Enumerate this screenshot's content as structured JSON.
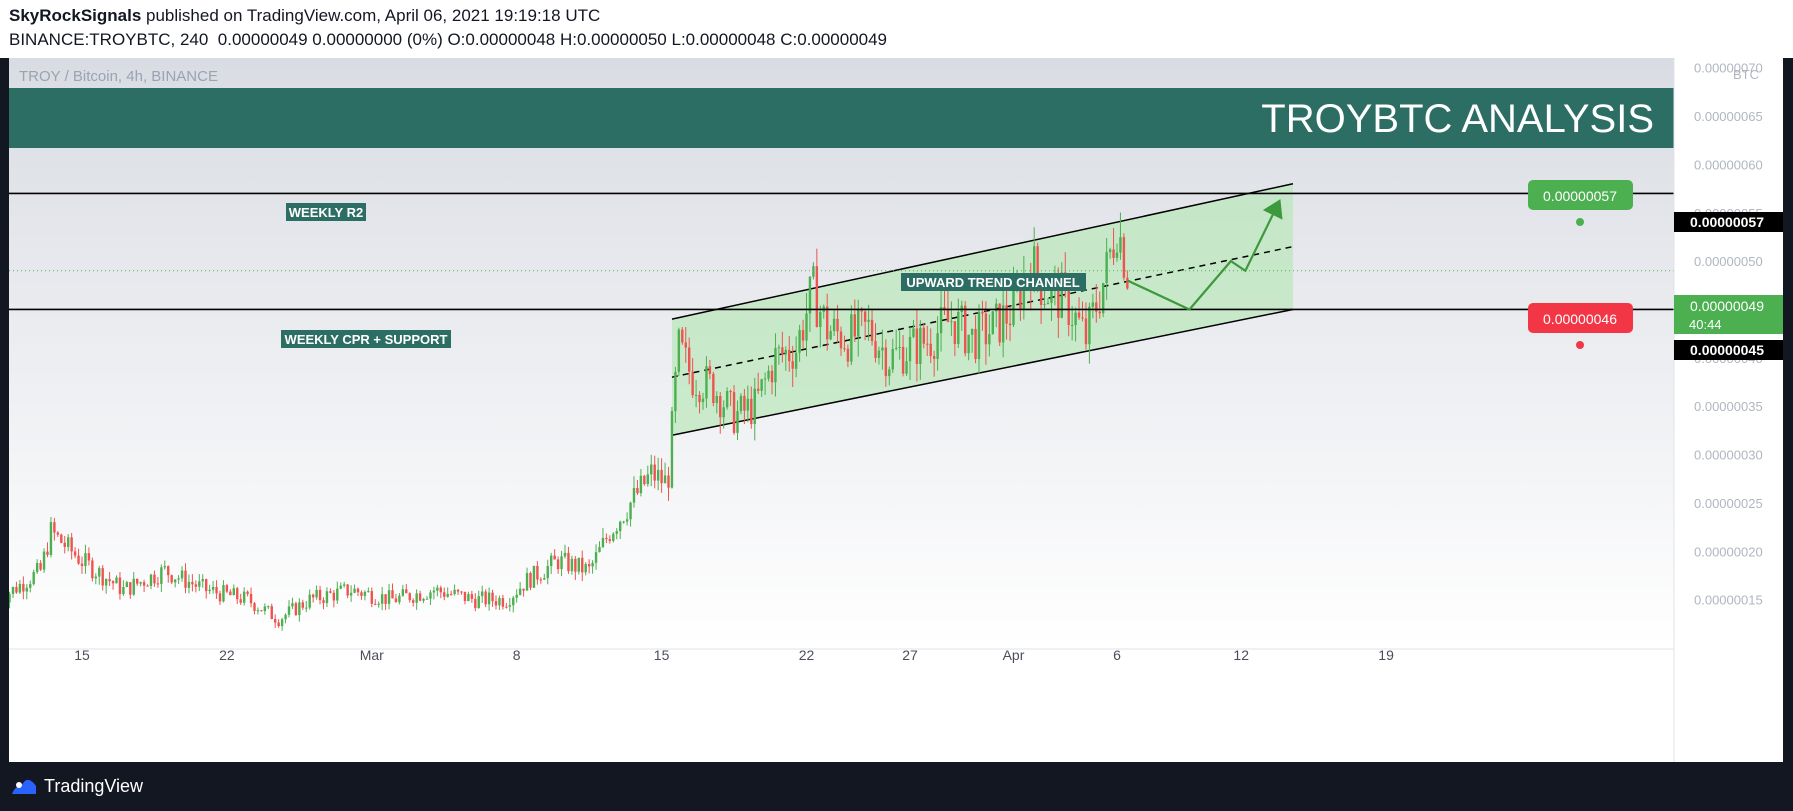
{
  "header": {
    "publisher": "SkyRockSignals",
    "published_text": " published on TradingView.com, April 06, 2021 19:19:18 UTC",
    "ohlc_line": "BINANCE:TROYBTC, 240  0.00000049 0.00000000 (0%) O:0.00000048 H:0.00000050 L:0.00000048 C:0.00000049"
  },
  "symbol_label": "TROY / Bitcoin, 4h, BINANCE",
  "banner_title": "TROYBTC ANALYSIS",
  "currency_label": "BTC",
  "annotations": {
    "weekly_r2": "WEEKLY R2",
    "weekly_cpr": "WEEKLY CPR + SUPPORT",
    "channel": "UPWARD TREND CHANNEL"
  },
  "price_tags": {
    "r2_line": "0.00000057",
    "support_line": "0.00000045",
    "current": "0.00000049",
    "countdown": "40:44",
    "target_green": "0.00000057",
    "target_red": "0.00000046"
  },
  "footer": {
    "brand": "TradingView"
  },
  "colors": {
    "up": "#26a69a",
    "up_candle": "#4caf50",
    "down": "#ef5350",
    "banner": "#2d6e64",
    "channel_fill": "#b9e7b9",
    "channel_line": "#000000",
    "arrow": "#3c9a3c",
    "tag_green": "#4caf50",
    "tag_red": "#f23645"
  },
  "chart_data": {
    "type": "candlestick",
    "title": "TROY / Bitcoin, 4h, BINANCE",
    "ylim": [
      1e-07,
      7.1e-07
    ],
    "y_ticks": [
      "0.00000015",
      "0.00000020",
      "0.00000025",
      "0.00000030",
      "0.00000035",
      "0.00000040",
      "0.00000045",
      "0.00000050",
      "0.00000055",
      "0.00000060",
      "0.00000065",
      "0.00000070"
    ],
    "x_ticks": [
      "15",
      "22",
      "Mar",
      "8",
      "15",
      "22",
      "27",
      "Apr",
      "6",
      "12",
      "19"
    ],
    "x_tick_days": [
      0,
      7,
      14,
      21,
      28,
      35,
      40,
      45,
      50,
      56,
      63
    ],
    "horizontal_levels": [
      {
        "label": "WEEKLY R2",
        "value": 5.7e-07
      },
      {
        "label": "WEEKLY CPR + SUPPORT",
        "value": 4.5e-07
      }
    ],
    "channel": {
      "label": "UPWARD TREND CHANNEL",
      "start_day": 28.5,
      "end_day": 58.5,
      "upper": [
        4.4e-07,
        5.8e-07
      ],
      "lower": [
        3.2e-07,
        4.5e-07
      ],
      "mid": [
        3.8e-07,
        5.15e-07
      ]
    },
    "projection_path": [
      [
        50.5,
        4.8e-07
      ],
      [
        53.5,
        4.5e-07
      ],
      [
        55.5,
        5e-07
      ],
      [
        56.2,
        4.9e-07
      ],
      [
        57.8,
        5.6e-07
      ]
    ],
    "daily_closes": [
      {
        "day": -4,
        "price": 1.5e-07
      },
      {
        "day": -2,
        "price": 1.8e-07
      },
      {
        "day": -1.5,
        "price": 2.2e-07
      },
      {
        "day": 0,
        "price": 1.9e-07
      },
      {
        "day": 2,
        "price": 1.6e-07
      },
      {
        "day": 4,
        "price": 1.8e-07
      },
      {
        "day": 6,
        "price": 1.6e-07
      },
      {
        "day": 8,
        "price": 1.5e-07
      },
      {
        "day": 9.5,
        "price": 1.3e-07
      },
      {
        "day": 11,
        "price": 1.5e-07
      },
      {
        "day": 13,
        "price": 1.6e-07
      },
      {
        "day": 15,
        "price": 1.5e-07
      },
      {
        "day": 17,
        "price": 1.6e-07
      },
      {
        "day": 19,
        "price": 1.5e-07
      },
      {
        "day": 20.5,
        "price": 1.5e-07
      },
      {
        "day": 21.5,
        "price": 1.7e-07
      },
      {
        "day": 23,
        "price": 1.9e-07
      },
      {
        "day": 24.5,
        "price": 1.8e-07
      },
      {
        "day": 25.5,
        "price": 2.2e-07
      },
      {
        "day": 26.5,
        "price": 2.5e-07
      },
      {
        "day": 27.5,
        "price": 2.8e-07
      },
      {
        "day": 28.3,
        "price": 2.7e-07
      },
      {
        "day": 28.8,
        "price": 4.1e-07
      },
      {
        "day": 29.5,
        "price": 3.8e-07
      },
      {
        "day": 30.5,
        "price": 3.7e-07
      },
      {
        "day": 31.5,
        "price": 3.4e-07
      },
      {
        "day": 32.5,
        "price": 3.5e-07
      },
      {
        "day": 33.5,
        "price": 4e-07
      },
      {
        "day": 34.5,
        "price": 4.1e-07
      },
      {
        "day": 35.3,
        "price": 4.7e-07
      },
      {
        "day": 36,
        "price": 4.3e-07
      },
      {
        "day": 37,
        "price": 4.2e-07
      },
      {
        "day": 38,
        "price": 4.3e-07
      },
      {
        "day": 39,
        "price": 4e-07
      },
      {
        "day": 40,
        "price": 4.1e-07
      },
      {
        "day": 41,
        "price": 4.2e-07
      },
      {
        "day": 42,
        "price": 4.4e-07
      },
      {
        "day": 43,
        "price": 4.2e-07
      },
      {
        "day": 44,
        "price": 4.3e-07
      },
      {
        "day": 45,
        "price": 4.5e-07
      },
      {
        "day": 45.8,
        "price": 5e-07
      },
      {
        "day": 46.5,
        "price": 4.7e-07
      },
      {
        "day": 47.5,
        "price": 4.6e-07
      },
      {
        "day": 48.5,
        "price": 4.2e-07
      },
      {
        "day": 49.5,
        "price": 4.9e-07
      },
      {
        "day": 50,
        "price": 5.4e-07
      },
      {
        "day": 50.5,
        "price": 4.9e-07
      }
    ]
  }
}
